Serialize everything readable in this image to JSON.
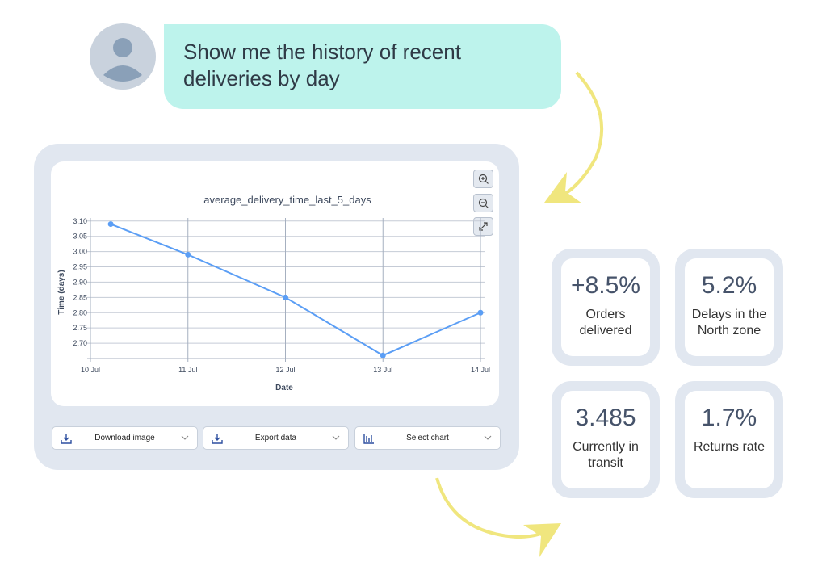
{
  "chat": {
    "message": "Show me the history of recent deliveries by day",
    "avatar_icon": "user-avatar-icon"
  },
  "chart_card": {
    "zoom_in_icon": "zoom-in-icon",
    "zoom_out_icon": "zoom-out-icon",
    "expand_icon": "expand-icon"
  },
  "chart_data": {
    "type": "line",
    "title": "average_delivery_time_last_5_days",
    "xlabel": "Date",
    "ylabel": "Time (days)",
    "x_ticks": [
      "10 Jul",
      "11 Jul",
      "12 Jul",
      "13 Jul",
      "14 Jul"
    ],
    "y_ticks": [
      "2.70",
      "2.75",
      "2.80",
      "2.85",
      "2.90",
      "2.95",
      "3.00",
      "3.05",
      "3.10"
    ],
    "ylim": [
      2.65,
      3.11
    ],
    "grid": true,
    "color": "#5b9ef5",
    "points": [
      {
        "x": "10 Jul 05:00",
        "y": 3.09
      },
      {
        "x": "11 Jul",
        "y": 2.99
      },
      {
        "x": "12 Jul",
        "y": 2.85
      },
      {
        "x": "13 Jul",
        "y": 2.66
      },
      {
        "x": "14 Jul",
        "y": 2.8
      }
    ]
  },
  "toolbar": {
    "download_image": "Download image",
    "export_data": "Export data",
    "select_chart": "Select chart"
  },
  "stats": [
    {
      "value": "+8.5%",
      "label": "Orders delivered"
    },
    {
      "value": "5.2%",
      "label": "Delays in the North zone"
    },
    {
      "value": "3.485",
      "label": "Currently in transit"
    },
    {
      "value": "1.7%",
      "label": "Returns rate"
    }
  ],
  "colors": {
    "bubble": "#bdf3ec",
    "panel": "#e1e7f0",
    "arrow": "#f0e67e",
    "line": "#5b9ef5"
  }
}
